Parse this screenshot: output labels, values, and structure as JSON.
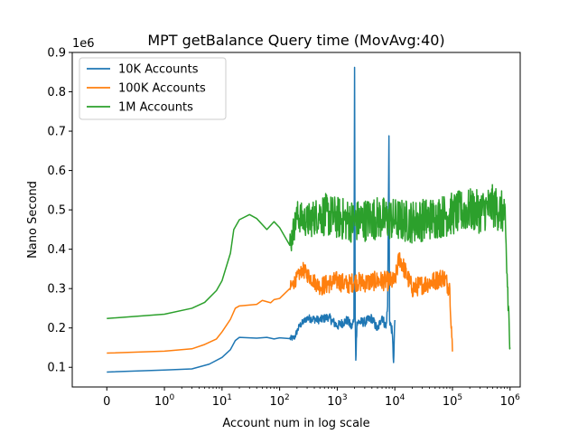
{
  "chart_data": {
    "type": "line",
    "title": "MPT getBalance Query time (MovAvg:40)",
    "xlabel": "Account num in log scale",
    "ylabel": "Nano Second",
    "x_scale": "symlog",
    "y_offset_label": "1e6",
    "xlim": [
      -0.6,
      1500000
    ],
    "ylim": [
      50000,
      900000
    ],
    "x_ticks": [
      {
        "value": 0,
        "base": "0",
        "exp": ""
      },
      {
        "value": 1,
        "base": "10",
        "exp": "0"
      },
      {
        "value": 10,
        "base": "10",
        "exp": "1"
      },
      {
        "value": 100,
        "base": "10",
        "exp": "2"
      },
      {
        "value": 1000,
        "base": "10",
        "exp": "3"
      },
      {
        "value": 10000,
        "base": "10",
        "exp": "4"
      },
      {
        "value": 100000,
        "base": "10",
        "exp": "5"
      },
      {
        "value": 1000000,
        "base": "10",
        "exp": "6"
      }
    ],
    "y_ticks": [
      {
        "value": 100000,
        "label": "0.1"
      },
      {
        "value": 200000,
        "label": "0.2"
      },
      {
        "value": 300000,
        "label": "0.3"
      },
      {
        "value": 400000,
        "label": "0.4"
      },
      {
        "value": 500000,
        "label": "0.5"
      },
      {
        "value": 600000,
        "label": "0.6"
      },
      {
        "value": 700000,
        "label": "0.7"
      },
      {
        "value": 800000,
        "label": "0.8"
      },
      {
        "value": 900000,
        "label": "0.9"
      }
    ],
    "legend_position": "upper-left",
    "grid": false,
    "series": [
      {
        "name": "10K Accounts",
        "color": "#1f77b4",
        "points": [
          [
            0,
            88000
          ],
          [
            1,
            93000
          ],
          [
            3,
            96000
          ],
          [
            6,
            108000
          ],
          [
            10,
            125000
          ],
          [
            14,
            145000
          ],
          [
            17,
            168000
          ],
          [
            20,
            176000
          ],
          [
            40,
            174000
          ],
          [
            60,
            176000
          ],
          [
            80,
            172000
          ],
          [
            100,
            175000
          ],
          [
            150,
            173000
          ],
          [
            180,
            175000
          ],
          [
            220,
            205000
          ],
          [
            300,
            225000
          ],
          [
            500,
            220000
          ],
          [
            700,
            228000
          ],
          [
            1000,
            205000
          ],
          [
            1500,
            220000
          ],
          [
            1800,
            200000
          ],
          [
            1950,
            225000
          ],
          [
            2000,
            862000
          ],
          [
            2050,
            230000
          ],
          [
            2100,
            118000
          ],
          [
            2200,
            215000
          ],
          [
            3000,
            215000
          ],
          [
            4000,
            225000
          ],
          [
            5000,
            195000
          ],
          [
            6000,
            230000
          ],
          [
            7000,
            200000
          ],
          [
            7500,
            255000
          ],
          [
            7900,
            688000
          ],
          [
            8100,
            220000
          ],
          [
            9000,
            190000
          ],
          [
            9500,
            112000
          ],
          [
            10000,
            220000
          ]
        ],
        "noise": 12000
      },
      {
        "name": "100K Accounts",
        "color": "#ff7f0e",
        "points": [
          [
            0,
            136000
          ],
          [
            1,
            141000
          ],
          [
            3,
            147000
          ],
          [
            5,
            158000
          ],
          [
            8,
            172000
          ],
          [
            10,
            190000
          ],
          [
            14,
            222000
          ],
          [
            17,
            250000
          ],
          [
            20,
            256000
          ],
          [
            40,
            260000
          ],
          [
            50,
            270000
          ],
          [
            70,
            264000
          ],
          [
            80,
            272000
          ],
          [
            100,
            275000
          ],
          [
            150,
            300000
          ],
          [
            250,
            348000
          ],
          [
            400,
            318000
          ],
          [
            500,
            305000
          ],
          [
            1000,
            320000
          ],
          [
            1500,
            310000
          ],
          [
            2000,
            318000
          ],
          [
            3000,
            315000
          ],
          [
            5000,
            320000
          ],
          [
            10000,
            318000
          ],
          [
            12000,
            380000
          ],
          [
            20000,
            300000
          ],
          [
            30000,
            310000
          ],
          [
            50000,
            320000
          ],
          [
            70000,
            330000
          ],
          [
            90000,
            300000
          ],
          [
            100000,
            140000
          ]
        ],
        "noise": 25000
      },
      {
        "name": "1M Accounts",
        "color": "#2ca02c",
        "points": [
          [
            0,
            224000
          ],
          [
            1,
            235000
          ],
          [
            3,
            250000
          ],
          [
            5,
            265000
          ],
          [
            8,
            295000
          ],
          [
            10,
            320000
          ],
          [
            14,
            390000
          ],
          [
            16,
            450000
          ],
          [
            20,
            475000
          ],
          [
            30,
            488000
          ],
          [
            40,
            478000
          ],
          [
            60,
            450000
          ],
          [
            80,
            470000
          ],
          [
            100,
            455000
          ],
          [
            150,
            410000
          ],
          [
            200,
            485000
          ],
          [
            300,
            470000
          ],
          [
            500,
            490000
          ],
          [
            1000,
            480000
          ],
          [
            2000,
            470000
          ],
          [
            5000,
            480000
          ],
          [
            10000,
            475000
          ],
          [
            20000,
            470000
          ],
          [
            50000,
            480000
          ],
          [
            100000,
            490000
          ],
          [
            200000,
            500000
          ],
          [
            300000,
            495000
          ],
          [
            500000,
            510000
          ],
          [
            800000,
            490000
          ],
          [
            1000000,
            150000
          ]
        ],
        "noise": 55000
      }
    ]
  }
}
